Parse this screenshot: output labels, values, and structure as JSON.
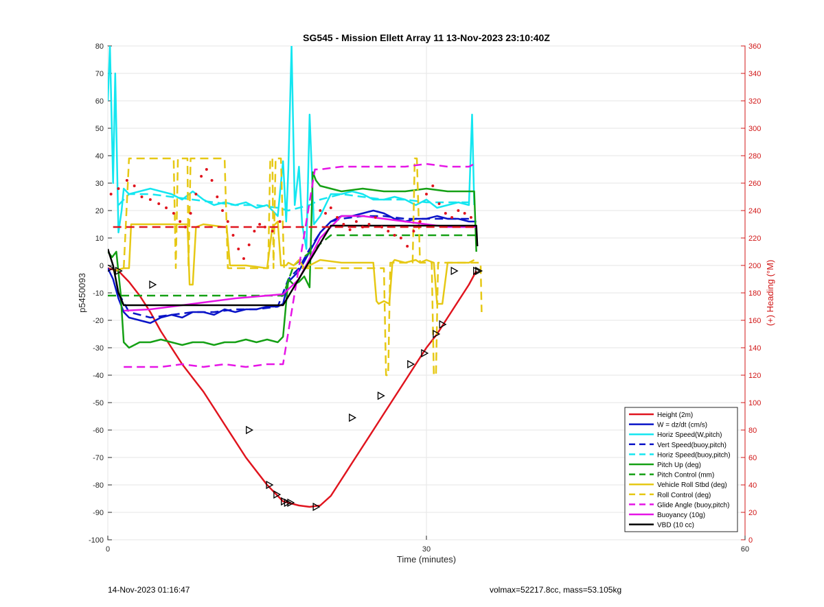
{
  "footer": {
    "timestamp": "14-Nov-2023 01:16:47",
    "params": "volmax=52217.8cc, mass=53.105kg"
  },
  "chart_data": {
    "type": "line",
    "title": "SG545 - Mission Ellett Array 11 13-Nov-2023 23:10:40Z",
    "xlabel": "Time (minutes)",
    "ylabel": "p5450093",
    "y2label": "(+) Heading (°M)",
    "xlim": [
      0,
      60
    ],
    "ylim": [
      -100,
      80
    ],
    "y2lim": [
      0,
      360
    ],
    "xticks": [
      0,
      30,
      60
    ],
    "yticks": [
      -100,
      -90,
      -80,
      -70,
      -60,
      -50,
      -40,
      -30,
      -20,
      -10,
      0,
      10,
      20,
      30,
      40,
      50,
      60,
      70,
      80
    ],
    "y2ticks": [
      0,
      20,
      40,
      60,
      80,
      100,
      120,
      140,
      160,
      180,
      200,
      220,
      240,
      260,
      280,
      300,
      320,
      340,
      360
    ],
    "grid": true,
    "legend_position": "bottom-right",
    "series": [
      {
        "name": "Height (2m)",
        "color": "#e0141e",
        "style": "solid",
        "axis": "left",
        "x": [
          0,
          1,
          2,
          3,
          4,
          5,
          6,
          7,
          8,
          9,
          10,
          11,
          12,
          13,
          14,
          15,
          16,
          16.5,
          17,
          18,
          19,
          20,
          21,
          22,
          23,
          24,
          25,
          26,
          27,
          28,
          29,
          30,
          31,
          32,
          33,
          34,
          34.7
        ],
        "y": [
          -1,
          -2,
          -6,
          -11,
          -17,
          -24,
          -30,
          -36,
          -41,
          -46,
          -52,
          -58,
          -64,
          -70,
          -75,
          -80,
          -84,
          -86,
          -86.5,
          -87.5,
          -88,
          -87.5,
          -84,
          -78,
          -72,
          -66,
          -60,
          -54,
          -48,
          -42,
          -36,
          -30,
          -25,
          -19,
          -13,
          -7,
          -2
        ]
      },
      {
        "name": "W = dz/dt (cm/s)",
        "color": "#0a14c8",
        "style": "solid",
        "axis": "left",
        "x": [
          0,
          0.5,
          1,
          1.5,
          2,
          3,
          4,
          5,
          6,
          7,
          8,
          9,
          10,
          11,
          12,
          13,
          14,
          15,
          16,
          16.5,
          17,
          18,
          19,
          20,
          21,
          22,
          23,
          24,
          25,
          26,
          27,
          28,
          29,
          30,
          31,
          32,
          33,
          34,
          34.7
        ],
        "y": [
          -1,
          -5,
          -12,
          -17,
          -19,
          -20,
          -21,
          -19,
          -18,
          -19,
          -17,
          -17,
          -18,
          -16,
          -17,
          -16,
          -16,
          -15,
          -15,
          -14,
          -6,
          -2,
          5,
          12,
          16,
          18,
          18,
          19,
          20,
          19,
          17,
          16,
          17,
          17,
          18,
          17,
          17,
          16,
          16
        ]
      },
      {
        "name": "Horiz Speed(W,pitch)",
        "color": "#14e6f0",
        "style": "solid",
        "axis": "left",
        "x": [
          0,
          0.2,
          0.5,
          0.7,
          1,
          1.3,
          1.5,
          2,
          3,
          4,
          5,
          6,
          7,
          8,
          9,
          10,
          11,
          12,
          13,
          14,
          15,
          16,
          16.5,
          16.8,
          17,
          17.3,
          17.6,
          18,
          18.3,
          18.7,
          19,
          19.4,
          20,
          21,
          22,
          23,
          24,
          25,
          26,
          27,
          28,
          29,
          30,
          31,
          32,
          33,
          34,
          34.3,
          34.5
        ],
        "y": [
          60,
          80,
          30,
          70,
          12,
          20,
          28,
          26,
          27,
          28,
          27,
          26,
          24,
          27,
          24,
          22,
          23,
          22,
          23,
          21,
          22,
          18,
          38,
          16,
          35,
          80,
          22,
          36,
          15,
          6,
          55,
          15,
          18,
          26,
          26,
          27,
          26,
          24,
          24,
          25,
          24,
          22,
          24,
          21,
          22,
          23,
          22,
          55,
          22
        ]
      },
      {
        "name": "Vert Speed(buoy,pitch)",
        "color": "#0a14c8",
        "style": "dashed",
        "axis": "left",
        "x": [
          1,
          2,
          4,
          6,
          8,
          10,
          12,
          14,
          16,
          17,
          18,
          19,
          20,
          21,
          22,
          24,
          26,
          28,
          30,
          32,
          34
        ],
        "y": [
          -10,
          -17,
          -19,
          -18,
          -17,
          -17,
          -16,
          -16,
          -15,
          -5,
          -1,
          6,
          12,
          16,
          17,
          18,
          18,
          17,
          17,
          17,
          17
        ]
      },
      {
        "name": "Horiz Speed(buoy,pitch)",
        "color": "#14e6f0",
        "style": "dashed",
        "axis": "left",
        "x": [
          1,
          2,
          4,
          6,
          8,
          10,
          12,
          14,
          16,
          17,
          18,
          19,
          20,
          21,
          22,
          24,
          26,
          28,
          30,
          32,
          34
        ],
        "y": [
          22,
          26,
          26,
          25,
          24,
          23,
          22,
          22,
          21,
          20,
          21,
          22,
          24,
          25,
          26,
          25,
          24,
          24,
          23,
          23,
          23
        ]
      },
      {
        "name": "Pitch Up (deg)",
        "color": "#14a014",
        "style": "solid",
        "axis": "left",
        "x": [
          0,
          0.4,
          0.8,
          1.2,
          1.5,
          2,
          3,
          4,
          5,
          6,
          7,
          8,
          9,
          10,
          11,
          12,
          13,
          14,
          15,
          16,
          16.5,
          17,
          17.5,
          18,
          18.5,
          19,
          19.3,
          19.6,
          20,
          21,
          22,
          24,
          26,
          28,
          30,
          32,
          34,
          34.5,
          34.7
        ],
        "y": [
          5,
          3,
          5,
          -10,
          -28,
          -30,
          -28,
          -28,
          -27,
          -28,
          -29,
          -28,
          -28,
          -29,
          -28,
          -28,
          -27,
          -28,
          -27,
          -28,
          -26,
          -5,
          -7,
          -6,
          -4,
          -8,
          34,
          31,
          29,
          28,
          27,
          28,
          27,
          27,
          28,
          27,
          27,
          27,
          5
        ]
      },
      {
        "name": "Pitch Control (mm)",
        "color": "#14a014",
        "style": "dashed",
        "axis": "left",
        "x": [
          0,
          2,
          16.5,
          17.5,
          21,
          34.7
        ],
        "y": [
          -11,
          -11,
          -11,
          0,
          11,
          11
        ]
      },
      {
        "name": "Vehicle Roll Stbd (deg)",
        "color": "#e6c814",
        "style": "solid",
        "axis": "left",
        "x": [
          0.5,
          1.5,
          2,
          2.2,
          3,
          5,
          7.5,
          7.7,
          8,
          8.3,
          9,
          11,
          11.2,
          11.5,
          13,
          15,
          15.5,
          16,
          16.3,
          16.8,
          17,
          17.5,
          18,
          18.5,
          20,
          22,
          24,
          25,
          25.3,
          25.5,
          26,
          26.5,
          26.8,
          27,
          28,
          29,
          29.4,
          30,
          30.7,
          31,
          31.5,
          32,
          34,
          34.5
        ],
        "y": [
          -2,
          -1,
          -1,
          15,
          15,
          15,
          15,
          -7,
          -7,
          14,
          15,
          14,
          14,
          0,
          0,
          -1,
          14,
          16,
          0,
          0,
          1,
          0,
          2,
          -1,
          2,
          1,
          1,
          1,
          -13,
          -14,
          -13,
          -14,
          1,
          2,
          1,
          2,
          1,
          2,
          1,
          -14,
          -14,
          1,
          1,
          2
        ]
      },
      {
        "name": "Roll Control (deg)",
        "color": "#e6c814",
        "style": "dashed",
        "axis": "left",
        "x": [
          1.5,
          2,
          2.3,
          6.2,
          6.4,
          6.6,
          7.5,
          7.6,
          7.8,
          11,
          11.3,
          11.5,
          15.1,
          15.3,
          15.5,
          15.6,
          15.8,
          16.3,
          16.6,
          16.7,
          26,
          26.2,
          26.4,
          26.6,
          28.7,
          28.9,
          29.1,
          29.4,
          30.5,
          30.7,
          30.9,
          31.1,
          34.5,
          35.1,
          35.2
        ],
        "y": [
          -1,
          39,
          39,
          39,
          -1,
          39,
          39,
          -1,
          39,
          39,
          -1,
          -1,
          -1,
          39,
          39,
          -1,
          39,
          39,
          -1,
          -1,
          -1,
          -40,
          -40,
          1,
          1,
          39,
          39,
          1,
          1,
          -40,
          -40,
          1,
          1,
          1,
          -17
        ]
      },
      {
        "name": "Glide Angle (buoy,pitch)",
        "color": "#e614e6",
        "style": "dashed",
        "axis": "left",
        "x": [
          1.5,
          3,
          5,
          7,
          9,
          11,
          13,
          15,
          16.5,
          19.5,
          20,
          22,
          24,
          26,
          28,
          30,
          32,
          34,
          34.5
        ],
        "y": [
          -37,
          -37,
          -37,
          -36,
          -37,
          -36,
          -37,
          -36,
          -36,
          35,
          35,
          36,
          36,
          36,
          36,
          37,
          36,
          36,
          37
        ]
      },
      {
        "name": "Buoyancy (10g)",
        "color": "#e614e6",
        "style": "solid",
        "axis": "left",
        "x": [
          1.5,
          4,
          8,
          12,
          16.5,
          18,
          20,
          22,
          24,
          28,
          32,
          34.7
        ],
        "y": [
          -16.5,
          -16,
          -14,
          -12,
          -10.5,
          -5,
          10,
          18,
          18,
          16,
          14,
          14
        ]
      },
      {
        "name": "VBD (10 cc)",
        "color": "#000000",
        "style": "solid",
        "axis": "left",
        "x": [
          0,
          0.5,
          1,
          1.5,
          16.5,
          21,
          34.7,
          34.8
        ],
        "y": [
          6,
          0,
          -10,
          -14.5,
          -14.5,
          14.5,
          14.5,
          7
        ]
      },
      {
        "name": "",
        "color": "#e0141e",
        "style": "dashed",
        "axis": "right",
        "x": [
          0.5,
          34.7
        ],
        "y": [
          228,
          228
        ]
      },
      {
        "name": "",
        "color": "#e0141e",
        "style": "dots",
        "axis": "right",
        "x": [
          0.3,
          1,
          1.8,
          2.5,
          3.2,
          4,
          4.8,
          5.5,
          6.2,
          6.8,
          7.3,
          7.8,
          8.3,
          8.8,
          9.3,
          9.8,
          10.3,
          10.8,
          11.3,
          11.8,
          12.3,
          12.8,
          13.3,
          13.8,
          14.3,
          14.8,
          15.5,
          16.2,
          20,
          20.5,
          21,
          21.6,
          22.2,
          22.8,
          23.4,
          24,
          24.6,
          25.2,
          25.8,
          26.4,
          27,
          27.6,
          28.2,
          28.8,
          29.4,
          30,
          30.6,
          31.2,
          31.8,
          32.4,
          33,
          33.6,
          34.2
        ],
        "y": [
          252,
          256,
          262,
          258,
          250,
          248,
          245,
          242,
          238,
          232,
          228,
          238,
          252,
          265,
          270,
          262,
          250,
          240,
          232,
          222,
          212,
          205,
          215,
          225,
          230,
          228,
          225,
          232,
          240,
          238,
          242,
          235,
          230,
          226,
          232,
          228,
          230,
          235,
          228,
          225,
          222,
          220,
          214,
          225,
          232,
          252,
          258,
          245,
          238,
          235,
          240,
          238,
          235
        ]
      }
    ],
    "markers": {
      "symbol": "triangle-right",
      "series": "Height (2m)",
      "x": [
        0.2,
        1,
        4.2,
        13.3,
        15.2,
        15.9,
        16.6,
        16.9,
        17.2,
        19.6,
        23,
        25.7,
        28.5,
        29.8,
        30.9,
        31.5,
        32.6,
        34.7,
        34.9
      ],
      "y": [
        -1,
        -2,
        -7,
        -60,
        -80,
        -83.5,
        -86,
        -86.5,
        -86.5,
        -88,
        -55.5,
        -47.5,
        -36,
        -32,
        -25,
        -21.5,
        -2,
        -2,
        -2
      ]
    }
  }
}
